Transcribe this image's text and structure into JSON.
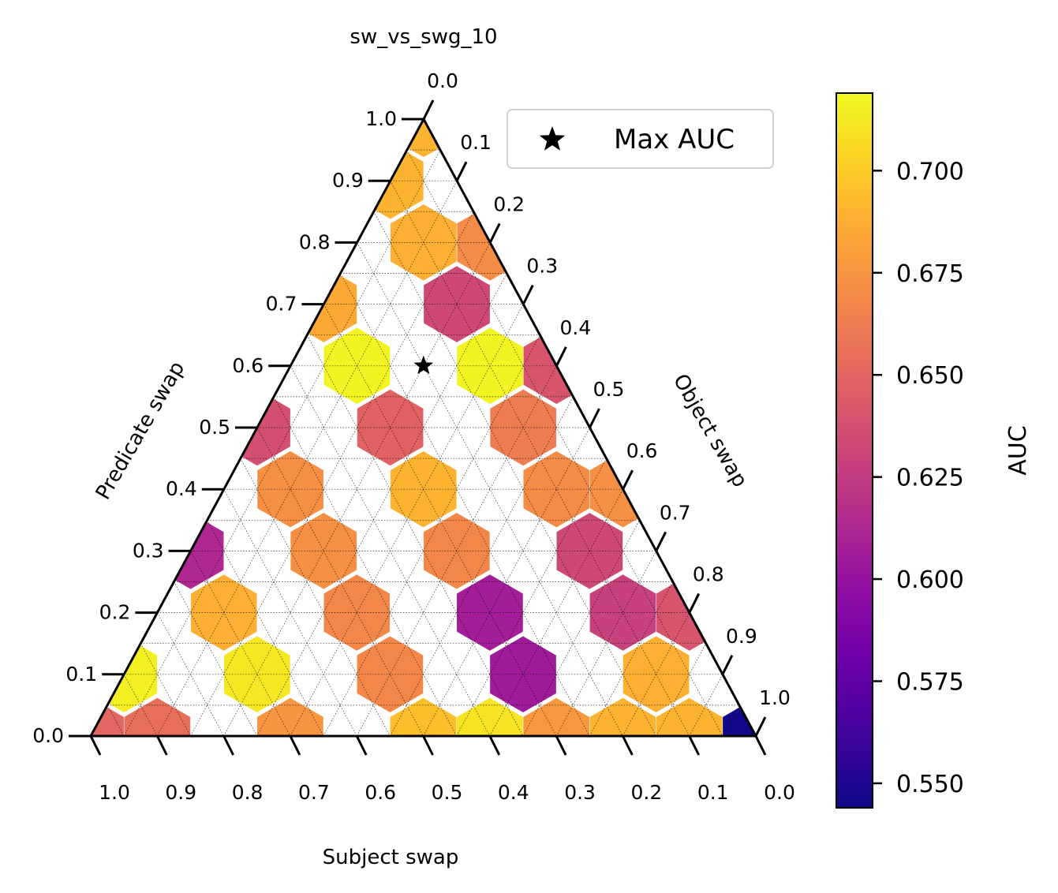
{
  "chart_data": {
    "type": "heatmap",
    "subtype": "ternary-hexbin",
    "title": "sw_vs_swg_10",
    "axes": {
      "bottom": {
        "label": "Subject swap",
        "ticks": [
          "1.0",
          "0.9",
          "0.8",
          "0.7",
          "0.6",
          "0.5",
          "0.4",
          "0.3",
          "0.2",
          "0.1",
          "0.0"
        ]
      },
      "left": {
        "label": "Predicate swap",
        "ticks": [
          "0.0",
          "0.1",
          "0.2",
          "0.3",
          "0.4",
          "0.5",
          "0.6",
          "0.7",
          "0.8",
          "0.9",
          "1.0"
        ]
      },
      "right": {
        "label": "Object swap",
        "ticks": [
          "0.0",
          "0.1",
          "0.2",
          "0.3",
          "0.4",
          "0.5",
          "0.6",
          "0.7",
          "0.8",
          "0.9",
          "1.0"
        ]
      }
    },
    "grid": true,
    "colormap": "plasma",
    "colorbar": {
      "label": "AUC",
      "range": [
        0.544,
        0.719
      ],
      "ticks": [
        "0.550",
        "0.575",
        "0.600",
        "0.625",
        "0.650",
        "0.675",
        "0.700"
      ]
    },
    "legend": {
      "entries": [
        "Max AUC"
      ],
      "position": "top-right"
    },
    "max_point": {
      "predicate": 0.6,
      "object": 0.2,
      "subject": 0.2,
      "label": "Max AUC"
    },
    "cells": [
      {
        "p": 0.9,
        "o": 0.0,
        "auc": 0.69
      },
      {
        "p": 0.7,
        "o": 0.0,
        "auc": 0.685
      },
      {
        "p": 0.7,
        "o": 0.2,
        "auc": 0.632
      },
      {
        "p": 0.5,
        "o": 0.0,
        "auc": 0.637
      },
      {
        "p": 0.5,
        "o": 0.2,
        "auc": 0.648
      },
      {
        "p": 0.5,
        "o": 0.4,
        "auc": 0.662
      },
      {
        "p": 0.3,
        "o": 0.0,
        "auc": 0.613
      },
      {
        "p": 0.3,
        "o": 0.2,
        "auc": 0.672
      },
      {
        "p": 0.3,
        "o": 0.4,
        "auc": 0.668
      },
      {
        "p": 0.3,
        "o": 0.6,
        "auc": 0.632
      },
      {
        "p": 0.1,
        "o": 0.0,
        "auc": 0.715
      },
      {
        "p": 0.1,
        "o": 0.2,
        "auc": 0.712
      },
      {
        "p": 0.1,
        "o": 0.4,
        "auc": 0.668
      },
      {
        "p": 0.1,
        "o": 0.6,
        "auc": 0.605
      },
      {
        "p": 0.1,
        "o": 0.8,
        "auc": 0.688
      },
      {
        "p": 0.8,
        "o": 0.1,
        "auc": 0.688
      },
      {
        "p": 0.6,
        "o": 0.1,
        "auc": 0.717
      },
      {
        "p": 0.6,
        "o": 0.3,
        "auc": 0.717
      },
      {
        "p": 0.4,
        "o": 0.1,
        "auc": 0.672
      },
      {
        "p": 0.4,
        "o": 0.3,
        "auc": 0.69
      },
      {
        "p": 0.4,
        "o": 0.5,
        "auc": 0.67
      },
      {
        "p": 0.2,
        "o": 0.1,
        "auc": 0.688
      },
      {
        "p": 0.2,
        "o": 0.3,
        "auc": 0.668
      },
      {
        "p": 0.2,
        "o": 0.5,
        "auc": 0.607
      },
      {
        "p": 0.2,
        "o": 0.7,
        "auc": 0.628
      },
      {
        "p": 0.0,
        "o": 0.1,
        "auc": 0.655
      },
      {
        "p": 0.0,
        "o": 0.3,
        "auc": 0.675
      },
      {
        "p": 0.0,
        "o": 0.5,
        "auc": 0.695
      },
      {
        "p": 0.0,
        "o": 0.7,
        "auc": 0.677
      },
      {
        "p": 0.0,
        "o": 0.9,
        "auc": 0.69
      },
      {
        "p": 1.0,
        "o": 0.0,
        "auc": 0.69
      },
      {
        "p": 0.8,
        "o": 0.2,
        "auc": 0.67
      },
      {
        "p": 0.6,
        "o": 0.4,
        "auc": 0.64
      },
      {
        "p": 0.4,
        "o": 0.6,
        "auc": 0.672
      },
      {
        "p": 0.2,
        "o": 0.8,
        "auc": 0.64
      },
      {
        "p": 0.0,
        "o": 0.0,
        "auc": 0.65
      },
      {
        "p": 0.0,
        "o": 0.6,
        "auc": 0.71
      },
      {
        "p": 0.0,
        "o": 0.8,
        "auc": 0.69
      },
      {
        "p": 0.0,
        "o": 1.0,
        "auc": 0.545
      }
    ]
  }
}
